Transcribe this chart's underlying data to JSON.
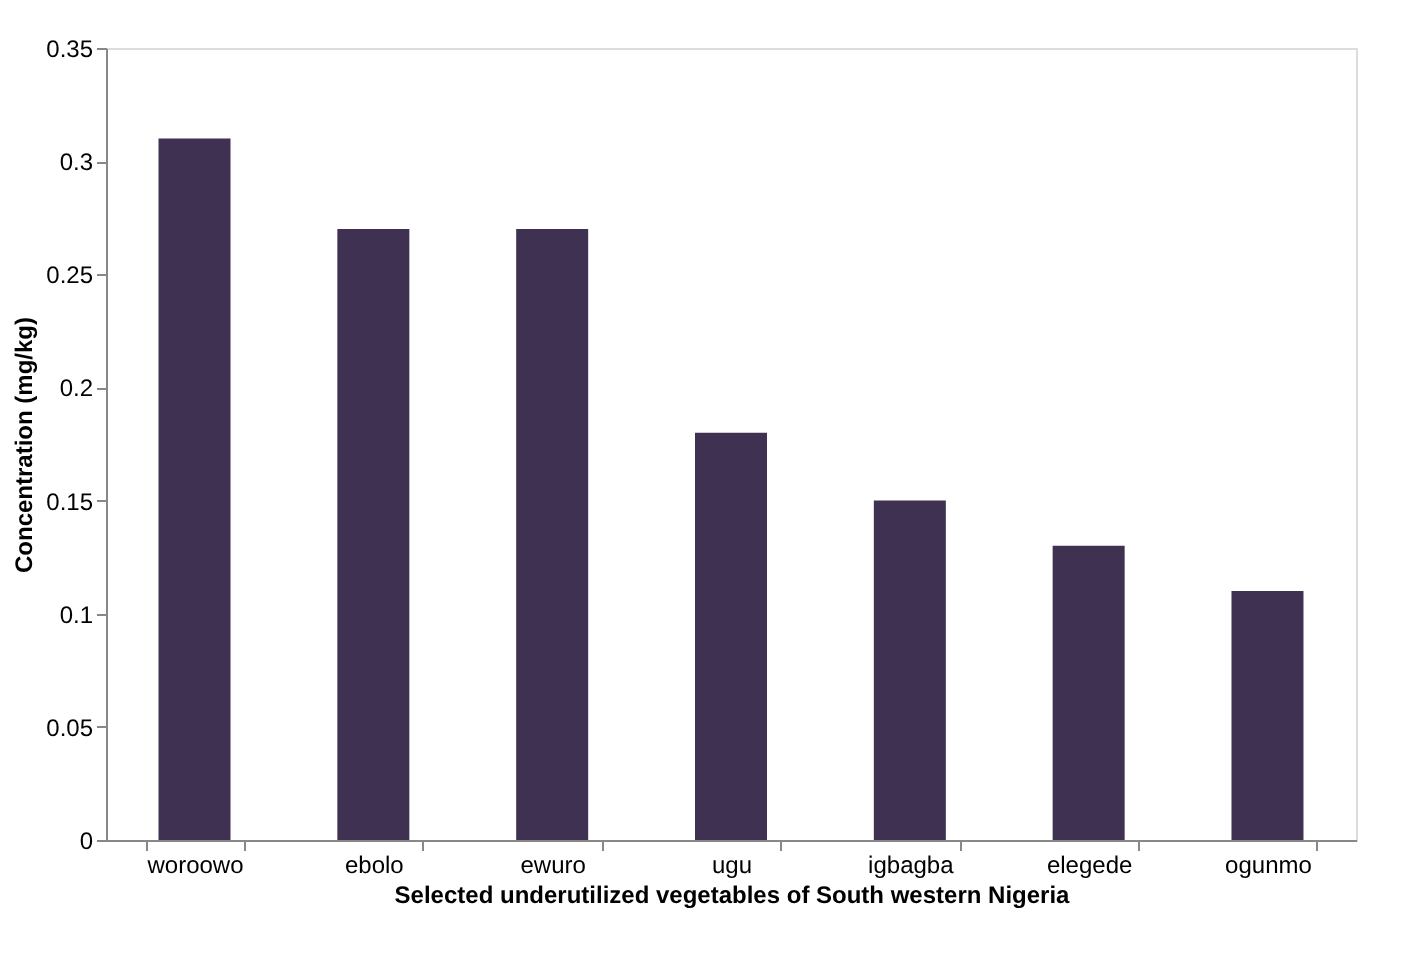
{
  "chart_data": {
    "type": "bar",
    "xlabel": "Selected underutilized vegetables of South western Nigeria",
    "ylabel": "Concentration (mg/kg)",
    "categories": [
      "woroowo",
      "ebolo",
      "ewuro",
      "ugu",
      "igbagba",
      "elegede",
      "ogunmo"
    ],
    "values": [
      0.31,
      0.27,
      0.27,
      0.18,
      0.15,
      0.13,
      0.11
    ],
    "color": "#3f3151",
    "ylim": [
      0,
      0.35
    ],
    "yticks": [
      0,
      0.05,
      0.1,
      0.15,
      0.2,
      0.25,
      0.3,
      0.35
    ],
    "grid": false
  }
}
